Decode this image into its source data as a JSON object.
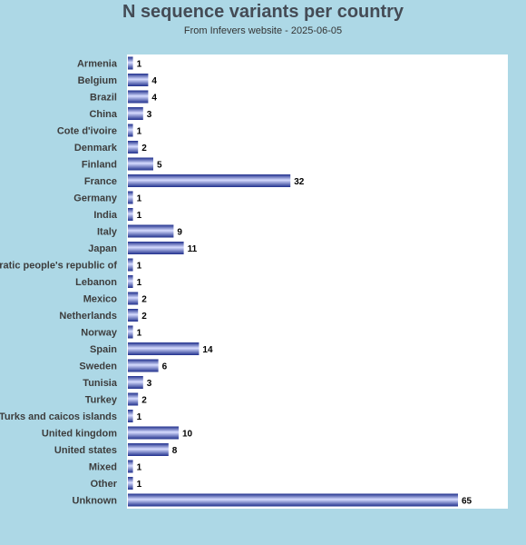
{
  "chart_data": {
    "type": "bar",
    "orientation": "horizontal",
    "title": "N sequence variants per country",
    "subtitle": "From Infevers website - 2025-06-05",
    "categories": [
      "Armenia",
      "Belgium",
      "Brazil",
      "China",
      "Cote d'ivoire",
      "Denmark",
      "Finland",
      "France",
      "Germany",
      "India",
      "Italy",
      "Japan",
      "Korea, democratic people's republic of",
      "Lebanon",
      "Mexico",
      "Netherlands",
      "Norway",
      "Spain",
      "Sweden",
      "Tunisia",
      "Turkey",
      "Turks and caicos islands",
      "United kingdom",
      "United states",
      "Mixed",
      "Other",
      "Unknown"
    ],
    "values": [
      1,
      4,
      4,
      3,
      1,
      2,
      5,
      32,
      1,
      1,
      9,
      11,
      1,
      1,
      2,
      2,
      1,
      14,
      6,
      3,
      2,
      1,
      10,
      8,
      1,
      1,
      65
    ],
    "xlim": [
      0,
      65
    ],
    "grid": false,
    "colors": {
      "background": "#add8e6",
      "plot_background": "#ffffff",
      "bar_dark": "#1f2f8c",
      "bar_light": "#d6dcff",
      "title": "#444b55"
    }
  }
}
